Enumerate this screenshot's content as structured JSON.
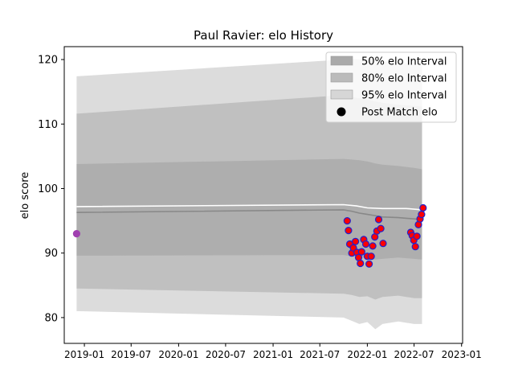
{
  "chart_data": {
    "type": "line",
    "title": "Paul Ravier: elo History",
    "xlabel": "",
    "ylabel": "elo score",
    "xlim": [
      "2018-10-15",
      "2023-01-05"
    ],
    "ylim": [
      76,
      122
    ],
    "x_ticks": [
      "2019-01",
      "2019-07",
      "2020-01",
      "2020-07",
      "2021-01",
      "2021-07",
      "2022-01",
      "2022-07",
      "2023-01"
    ],
    "y_ticks": [
      80,
      90,
      100,
      110,
      120
    ],
    "grid": false,
    "legend_position": "top-right",
    "legend": [
      "50% elo Interval",
      "80% elo Interval",
      "95% elo Interval",
      "Post Match elo"
    ],
    "colors": {
      "band50": "#aaaaaa",
      "band80": "#bbbbbb",
      "band95": "#d6d6d6",
      "median_line": "#888888",
      "mean_line": "#ffffff",
      "point_fill": "#ff0000",
      "point_edge": "#2222cc",
      "initial_point": "#a040b0"
    },
    "series": [
      {
        "name": "Post Match elo",
        "x": [
          "2018-12-02",
          "2021-10-15",
          "2021-10-20",
          "2021-10-25",
          "2021-11-02",
          "2021-11-08",
          "2021-11-16",
          "2021-11-22",
          "2021-11-28",
          "2021-12-05",
          "2021-12-10",
          "2021-12-18",
          "2021-12-26",
          "2022-01-01",
          "2022-01-08",
          "2022-01-16",
          "2022-01-22",
          "2022-01-30",
          "2022-02-07",
          "2022-02-14",
          "2022-02-22",
          "2022-03-03",
          "2022-06-18",
          "2022-06-24",
          "2022-06-30",
          "2022-07-06",
          "2022-07-12",
          "2022-07-18",
          "2022-07-24",
          "2022-07-30",
          "2022-08-05"
        ],
        "y": [
          93.0,
          95.0,
          93.5,
          91.4,
          90.0,
          90.8,
          91.8,
          90.1,
          89.3,
          88.4,
          90.2,
          92.1,
          91.4,
          89.5,
          88.3,
          89.5,
          91.1,
          92.5,
          93.4,
          95.2,
          93.8,
          91.5,
          93.2,
          92.7,
          92.0,
          91.0,
          92.6,
          94.4,
          95.3,
          96.0,
          97.0
        ]
      },
      {
        "x": [
          "2018-12-02",
          "2021-10-01",
          "2021-11-20",
          "2022-01-01",
          "2022-03-01",
          "2022-06-01",
          "2022-08-01"
        ],
        "y": [
          97.2,
          97.5,
          97.3,
          97.0,
          96.9,
          96.9,
          96.7
        ]
      },
      {
        "x": [
          "2018-12-02",
          "2021-10-01",
          "2021-11-01",
          "2021-12-01",
          "2022-01-01",
          "2022-02-01",
          "2022-03-01",
          "2022-05-01",
          "2022-07-01",
          "2022-08-01"
        ],
        "y": [
          96.3,
          96.7,
          96.5,
          96.2,
          96.0,
          95.8,
          95.6,
          95.5,
          95.3,
          95.2
        ]
      }
    ],
    "bands": [
      {
        "name": "95% elo Interval",
        "x": [
          "2018-12-02",
          "2021-10-01",
          "2021-11-01",
          "2021-12-01",
          "2022-01-01",
          "2022-02-01",
          "2022-03-01",
          "2022-05-01",
          "2022-07-01",
          "2022-08-01"
        ],
        "upper": [
          117.4,
          120.0,
          120.1,
          120.0,
          119.9,
          119.8,
          119.7,
          119.5,
          119.3,
          119.2
        ],
        "lower": [
          81.0,
          80.0,
          79.5,
          79.0,
          79.3,
          78.2,
          79.0,
          79.4,
          79.0,
          79.0
        ]
      },
      {
        "name": "80% elo Interval",
        "x": [
          "2018-12-02",
          "2021-10-01",
          "2021-11-01",
          "2021-12-01",
          "2022-01-01",
          "2022-02-01",
          "2022-03-01",
          "2022-05-01",
          "2022-07-01",
          "2022-08-01"
        ],
        "upper": [
          111.6,
          114.5,
          114.2,
          114.0,
          113.8,
          113.5,
          113.3,
          113.0,
          112.8,
          112.7
        ],
        "lower": [
          84.5,
          83.7,
          83.5,
          83.2,
          83.3,
          82.8,
          83.2,
          83.4,
          83.0,
          83.0
        ]
      },
      {
        "name": "50% elo Interval",
        "x": [
          "2018-12-02",
          "2021-10-01",
          "2021-11-01",
          "2021-12-01",
          "2022-01-01",
          "2022-02-01",
          "2022-03-01",
          "2022-05-01",
          "2022-07-01",
          "2022-08-01"
        ],
        "upper": [
          103.8,
          104.6,
          104.5,
          104.4,
          104.2,
          103.9,
          103.7,
          103.5,
          103.2,
          103.0
        ],
        "lower": [
          89.6,
          89.7,
          89.5,
          89.3,
          89.3,
          89.0,
          89.1,
          89.3,
          89.1,
          89.0
        ]
      }
    ]
  }
}
